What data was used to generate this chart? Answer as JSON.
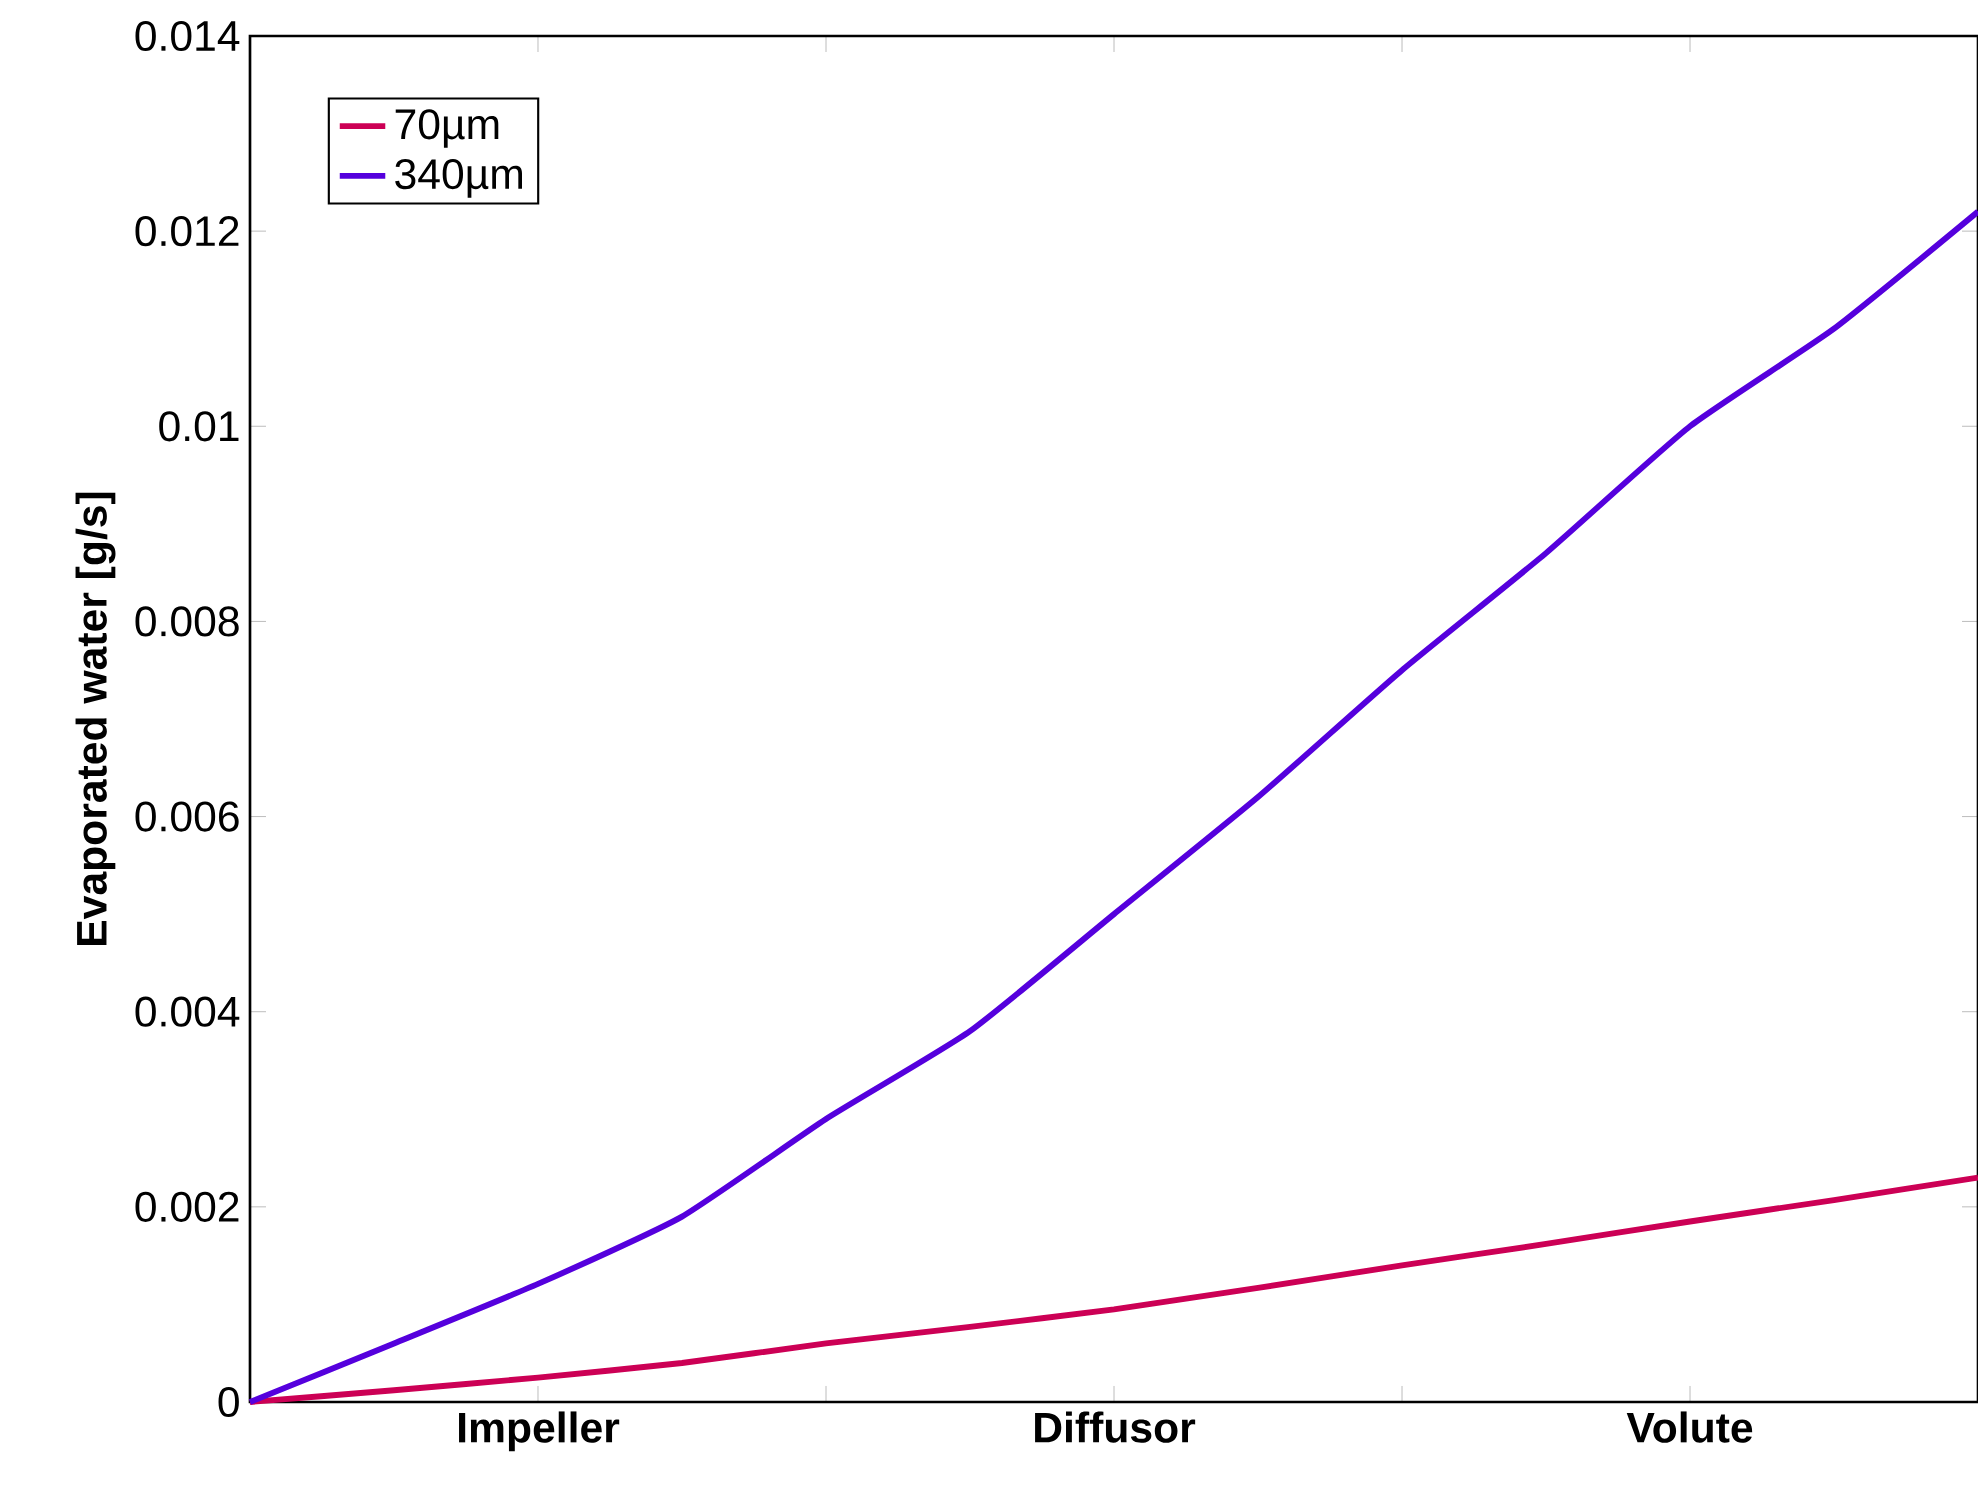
{
  "chart_data": {
    "type": "line",
    "ylabel": "Evaporated water [g/s]",
    "categories": [
      null,
      null,
      "Impeller",
      null,
      null,
      null,
      "Diffusor",
      null,
      null,
      null,
      "Volute",
      null,
      null
    ],
    "ylim": [
      0,
      0.014
    ],
    "yticks": [
      0,
      0.002,
      0.004,
      0.006,
      0.008,
      0.01,
      0.012,
      0.014
    ],
    "series": [
      {
        "name": "70µm",
        "color": "#cc0055",
        "values": [
          0,
          0.00012,
          0.00025,
          0.0004,
          0.0006,
          0.00077,
          0.00095,
          0.00117,
          0.0014,
          0.00162,
          0.00185,
          0.00207,
          0.0023
        ]
      },
      {
        "name": "340µm",
        "color": "#5500dd",
        "values": [
          0,
          0.0006,
          0.00121,
          0.0019,
          0.0029,
          0.0038,
          0.005,
          0.0062,
          0.0075,
          0.0087,
          0.01,
          0.011,
          0.0122
        ]
      }
    ],
    "legend": "top left",
    "grid": false,
    "marker": "none",
    "line_style": "solid"
  }
}
